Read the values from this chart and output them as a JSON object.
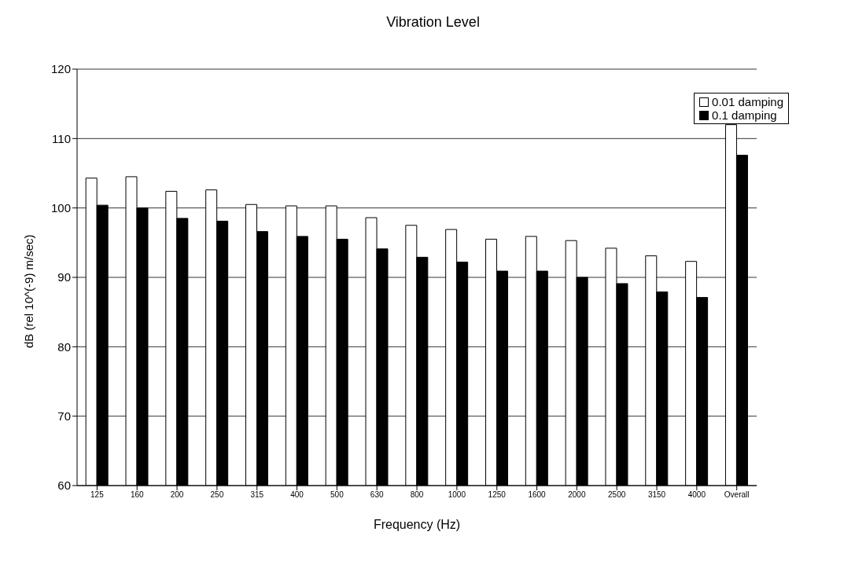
{
  "chart_data": {
    "type": "bar",
    "title": "Vibration Level",
    "xlabel": "Frequency (Hz)",
    "ylabel": "dB (rel 10^(-9) m/sec)",
    "categories": [
      "125",
      "160",
      "200",
      "250",
      "315",
      "400",
      "500",
      "630",
      "800",
      "1000",
      "1250",
      "1600",
      "2000",
      "2500",
      "3150",
      "4000",
      "Overall"
    ],
    "series": [
      {
        "name": "0.01 damping",
        "color": "#ffffff",
        "values": [
          104.3,
          104.5,
          102.4,
          102.6,
          100.5,
          100.3,
          100.3,
          98.6,
          97.5,
          96.9,
          95.5,
          95.9,
          95.3,
          94.2,
          93.1,
          92.3,
          112
        ]
      },
      {
        "name": "0.1 damping",
        "color": "#000000",
        "values": [
          100.4,
          100,
          98.5,
          98.1,
          96.6,
          95.9,
          95.5,
          94.1,
          92.9,
          92.2,
          90.9,
          90.9,
          90,
          89.1,
          87.9,
          87.1,
          107.6
        ]
      }
    ],
    "ylim": [
      60,
      120
    ],
    "yticks": [
      60,
      70,
      80,
      90,
      100,
      110,
      120
    ],
    "grid": "y",
    "legend": "top right"
  }
}
